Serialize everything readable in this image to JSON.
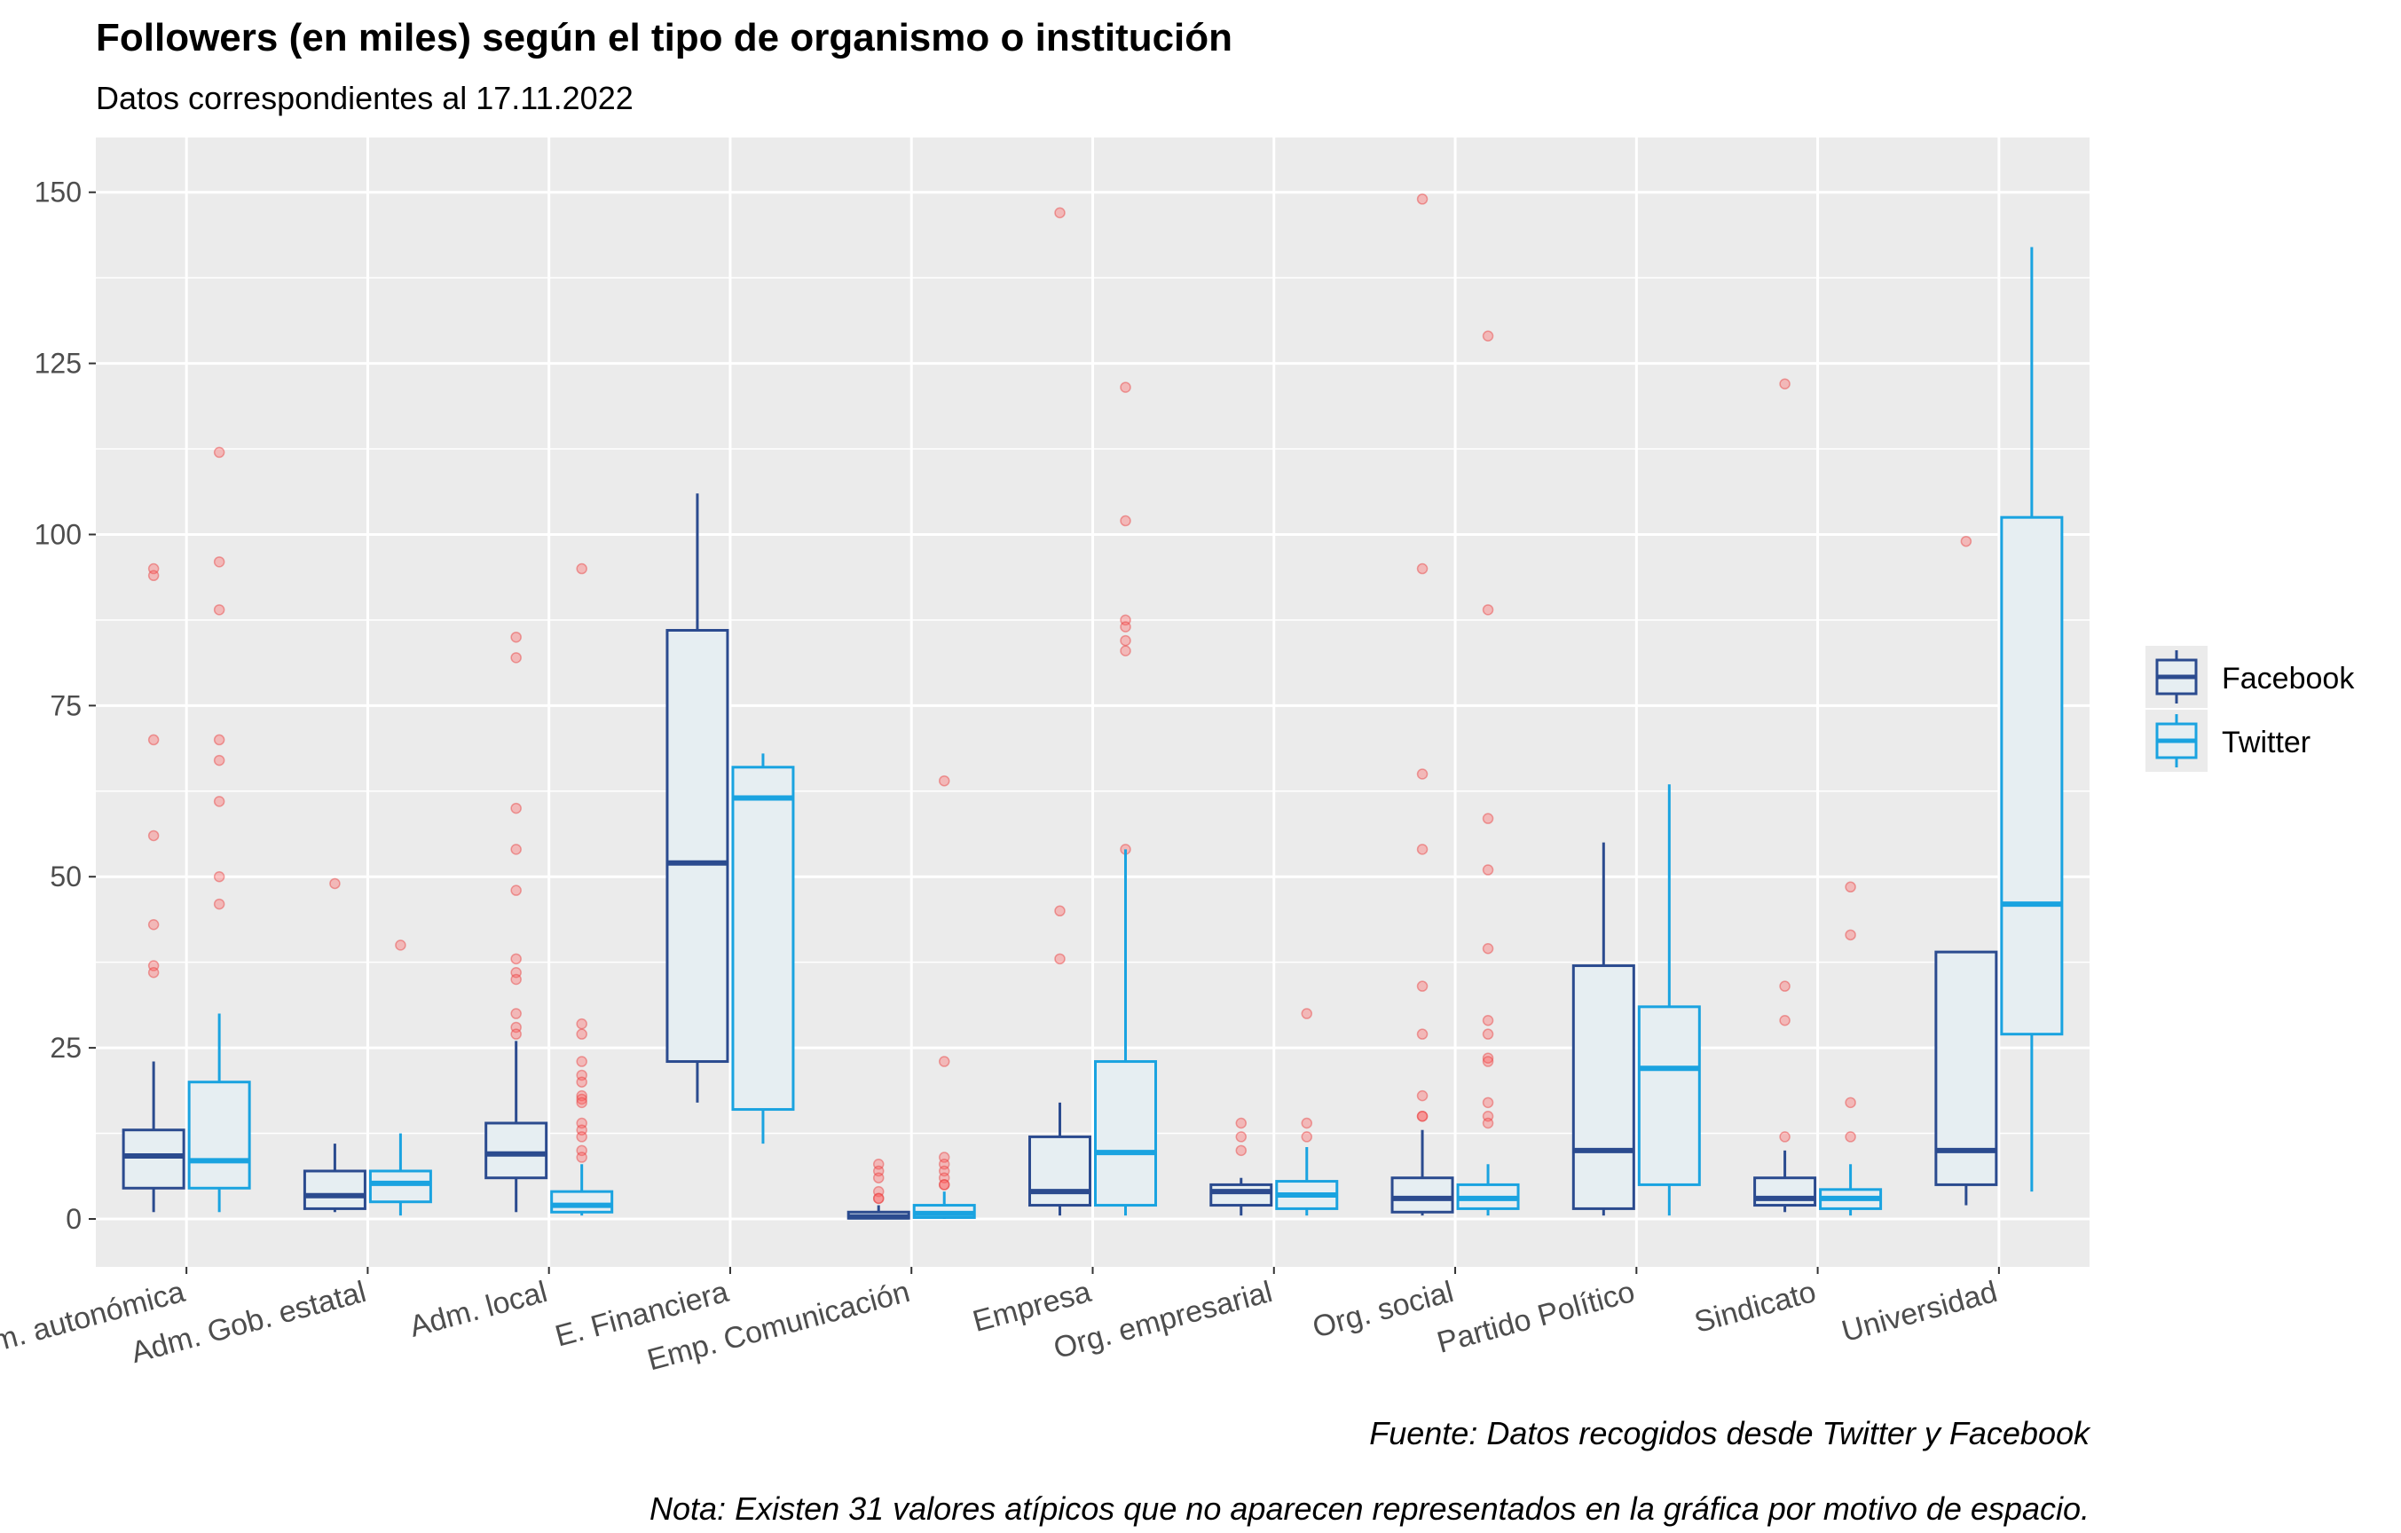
{
  "chart_data": {
    "type": "boxplot",
    "title": "Followers (en miles) según el tipo de organismo o institución",
    "subtitle": "Datos correspondientes al 17.11.2022",
    "xlabel": "",
    "ylabel": "",
    "ylim": [
      -7,
      158
    ],
    "yticks": [
      0,
      25,
      50,
      75,
      100,
      125,
      150
    ],
    "grid": true,
    "legend_position": "right",
    "caption": "Fuente: Datos recogidos desde Twitter y Facebook",
    "note": "Nota: Existen 31 valores atípicos que no aparecen representados en la gráfica por motivo de espacio.",
    "categories": [
      "Adm. autonómica",
      "Adm. Gob. estatal",
      "Adm. local",
      "E. Financiera",
      "Emp. Comunicación",
      "Empresa",
      "Org. empresarial",
      "Org. social",
      "Partido Político",
      "Sindicato",
      "Universidad"
    ],
    "series": [
      {
        "name": "Facebook",
        "color": "#2b4b8f",
        "boxes": [
          {
            "lower_whisker": 1,
            "q1": 4.5,
            "median": 9.2,
            "q3": 13,
            "upper_whisker": 23,
            "outliers": [
              95,
              94,
              70,
              56,
              43,
              37,
              36
            ]
          },
          {
            "lower_whisker": 1,
            "q1": 1.5,
            "median": 3.4,
            "q3": 7,
            "upper_whisker": 11,
            "outliers": [
              49
            ]
          },
          {
            "lower_whisker": 1,
            "q1": 6,
            "median": 9.5,
            "q3": 14,
            "upper_whisker": 26,
            "outliers": [
              85,
              82,
              60,
              54,
              48,
              38,
              36,
              35,
              30,
              28,
              27
            ]
          },
          {
            "lower_whisker": 17,
            "q1": 23,
            "median": 52,
            "q3": 86,
            "upper_whisker": 106,
            "outliers": []
          },
          {
            "lower_whisker": 0,
            "q1": 0.1,
            "median": 0.3,
            "q3": 1,
            "upper_whisker": 2,
            "outliers": [
              8,
              7,
              6,
              4,
              3,
              3
            ]
          },
          {
            "lower_whisker": 0.5,
            "q1": 2,
            "median": 4,
            "q3": 12,
            "upper_whisker": 17,
            "outliers": [
              147,
              45,
              38
            ]
          },
          {
            "lower_whisker": 0.5,
            "q1": 2,
            "median": 4,
            "q3": 5,
            "upper_whisker": 6,
            "outliers": [
              14,
              12,
              10
            ]
          },
          {
            "lower_whisker": 0.5,
            "q1": 1,
            "median": 3,
            "q3": 6,
            "upper_whisker": 13,
            "outliers": [
              149,
              95,
              65,
              54,
              34,
              27,
              18,
              15,
              15
            ]
          },
          {
            "lower_whisker": 0.5,
            "q1": 1.5,
            "median": 10,
            "q3": 37,
            "upper_whisker": 55,
            "outliers": []
          },
          {
            "lower_whisker": 1,
            "q1": 2,
            "median": 3,
            "q3": 6,
            "upper_whisker": 10,
            "outliers": [
              122,
              34,
              29,
              12
            ]
          },
          {
            "lower_whisker": 2,
            "q1": 5,
            "median": 10,
            "q3": 39,
            "upper_whisker": 39,
            "outliers": [
              99
            ]
          }
        ]
      },
      {
        "name": "Twitter",
        "color": "#1aa3e0",
        "boxes": [
          {
            "lower_whisker": 1,
            "q1": 4.5,
            "median": 8.5,
            "q3": 20,
            "upper_whisker": 30,
            "outliers": [
              112,
              96,
              89,
              70,
              67,
              61,
              50,
              46
            ]
          },
          {
            "lower_whisker": 0.5,
            "q1": 2.5,
            "median": 5.2,
            "q3": 7,
            "upper_whisker": 12.5,
            "outliers": [
              40
            ]
          },
          {
            "lower_whisker": 0.5,
            "q1": 1,
            "median": 2,
            "q3": 4,
            "upper_whisker": 8,
            "outliers": [
              95,
              28.5,
              27,
              23,
              21,
              20,
              18,
              17.5,
              17,
              14,
              13,
              12,
              10,
              9
            ]
          },
          {
            "lower_whisker": 11,
            "q1": 16,
            "median": 61.5,
            "q3": 66,
            "upper_whisker": 68,
            "outliers": []
          },
          {
            "lower_whisker": 0,
            "q1": 0.2,
            "median": 0.8,
            "q3": 2,
            "upper_whisker": 4,
            "outliers": [
              64,
              23,
              9,
              8,
              7,
              6,
              5,
              5
            ]
          },
          {
            "lower_whisker": 0.5,
            "q1": 2,
            "median": 9.7,
            "q3": 23,
            "upper_whisker": 54,
            "outliers": [
              121.5,
              102,
              87.5,
              86.5,
              84.5,
              83,
              54
            ]
          },
          {
            "lower_whisker": 0.5,
            "q1": 1.5,
            "median": 3.5,
            "q3": 5.5,
            "upper_whisker": 10.5,
            "outliers": [
              30,
              14,
              12
            ]
          },
          {
            "lower_whisker": 0.5,
            "q1": 1.5,
            "median": 3,
            "q3": 5,
            "upper_whisker": 8,
            "outliers": [
              129,
              89,
              58.5,
              51,
              39.5,
              29,
              27,
              23.5,
              23,
              17,
              15,
              14
            ]
          },
          {
            "lower_whisker": 0.5,
            "q1": 5,
            "median": 22,
            "q3": 31,
            "upper_whisker": 63.5,
            "outliers": []
          },
          {
            "lower_whisker": 0.5,
            "q1": 1.5,
            "median": 3,
            "q3": 4.3,
            "upper_whisker": 8,
            "outliers": [
              48.5,
              41.5,
              17,
              12
            ]
          },
          {
            "lower_whisker": 4,
            "q1": 27,
            "median": 46,
            "q3": 102.5,
            "upper_whisker": 142,
            "outliers": []
          }
        ]
      }
    ]
  }
}
